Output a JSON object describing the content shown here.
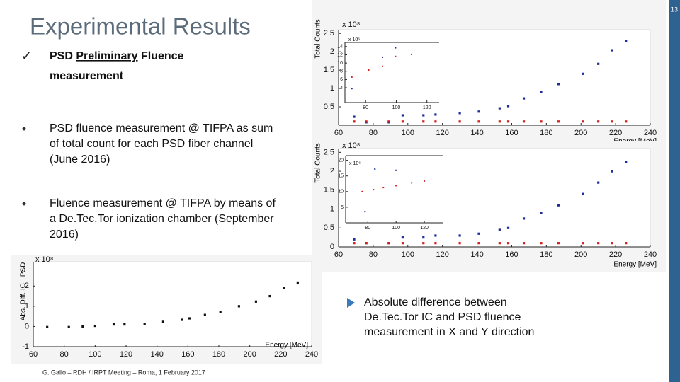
{
  "slide": {
    "title": "Experimental Results",
    "check": "✓",
    "heading": {
      "a": "PSD",
      "u": "Preliminary",
      "b": "Fluence",
      "line2": "measurement"
    },
    "bullets": [
      [
        "PSD fluence measurement @ TIFPA as sum",
        "of total count for each PSD fiber channel",
        "(June 2016)"
      ],
      [
        "Fluence measurement @ TIFPA by means of",
        "a De.Tec.Tor ionization chamber (September",
        "2016)"
      ]
    ],
    "note": [
      "Absolute difference between",
      "De.Tec.Tor IC and PSD fluence",
      "measurement in X and Y direction"
    ],
    "footer": "G. Gallo – RDH / IRPT Meeting – Roma, 1 February 2017",
    "page": "13"
  },
  "chart_data": [
    {
      "type": "scatter",
      "ylabel": "Total Counts",
      "xlabel": "Energy [MeV]",
      "exponent": "x 10⁸",
      "xlim": [
        60,
        240
      ],
      "xticks": [
        60,
        80,
        100,
        120,
        140,
        160,
        180,
        200,
        220,
        240
      ],
      "ylim": [
        0,
        2.6
      ],
      "yticks": [
        0.5,
        1,
        1.5,
        2,
        2.5
      ],
      "series": [
        {
          "color": "#1f2f9a",
          "x": [
            69,
            76,
            89,
            97,
            109,
            116,
            130,
            141,
            153,
            158,
            167,
            177,
            187,
            201,
            210,
            218,
            226
          ],
          "values": [
            0.23,
            0.08,
            0.08,
            0.27,
            0.27,
            0.29,
            0.33,
            0.37,
            0.46,
            0.52,
            0.73,
            0.9,
            1.12,
            1.4,
            1.67,
            2.04,
            2.29
          ]
        },
        {
          "color": "#d02020",
          "x": [
            69,
            76,
            89,
            97,
            109,
            116,
            130,
            141,
            153,
            158,
            167,
            177,
            187,
            201,
            210,
            218,
            226
          ],
          "values": [
            0.1,
            0.1,
            0.1,
            0.1,
            0.1,
            0.1,
            0.1,
            0.1,
            0.1,
            0.1,
            0.1,
            0.1,
            0.1,
            0.1,
            0.1,
            0.1,
            0.1
          ]
        }
      ]
    },
    {
      "type": "scatter",
      "ylabel": "Total Counts",
      "xlabel": "Energy [MeV]",
      "exponent": "x 10⁸",
      "xlim": [
        60,
        240
      ],
      "xticks": [
        60,
        80,
        100,
        120,
        140,
        160,
        180,
        200,
        220,
        240
      ],
      "ylim": [
        0,
        2.6
      ],
      "yticks": [
        0,
        0.5,
        1,
        1.5,
        2,
        2.5
      ],
      "series": [
        {
          "color": "#1f2f9a",
          "x": [
            69,
            76,
            89,
            97,
            109,
            116,
            130,
            141,
            153,
            158,
            167,
            177,
            187,
            201,
            210,
            218,
            226
          ],
          "values": [
            0.2,
            0.1,
            0.1,
            0.25,
            0.25,
            0.3,
            0.3,
            0.35,
            0.45,
            0.5,
            0.75,
            0.9,
            1.1,
            1.4,
            1.7,
            2.0,
            2.24
          ]
        },
        {
          "color": "#d02020",
          "x": [
            69,
            76,
            89,
            97,
            109,
            116,
            130,
            141,
            153,
            158,
            167,
            177,
            187,
            201,
            210,
            218,
            226
          ],
          "values": [
            0.1,
            0.1,
            0.1,
            0.1,
            0.1,
            0.1,
            0.1,
            0.1,
            0.1,
            0.1,
            0.1,
            0.1,
            0.1,
            0.1,
            0.1,
            0.1,
            0.1
          ]
        }
      ]
    },
    {
      "type": "scatter",
      "ylabel": "Abs. Diff. IC - PSD",
      "xlabel": "Energy [MeV]",
      "exponent": "x 10⁸",
      "xlim": [
        60,
        240
      ],
      "xticks": [
        60,
        80,
        100,
        120,
        140,
        160,
        180,
        200,
        220,
        240
      ],
      "ylim": [
        -1,
        3.2
      ],
      "yticks": [
        -1,
        0,
        1,
        2
      ],
      "series": [
        {
          "color": "#111111",
          "x": [
            69,
            83,
            92,
            100,
            112,
            119,
            132,
            144,
            156,
            161,
            171,
            181,
            193,
            204,
            213,
            222,
            231
          ],
          "values": [
            -0.03,
            -0.03,
            0,
            0.03,
            0.1,
            0.1,
            0.13,
            0.23,
            0.33,
            0.4,
            0.57,
            0.73,
            1.0,
            1.23,
            1.5,
            1.9,
            2.17
          ]
        }
      ]
    },
    {
      "type": "scatter",
      "exponent": "x 10⁶",
      "xlim": [
        66.5,
        128
      ],
      "xticks": [
        80,
        100,
        120
      ],
      "ylim": [
        0.4,
        15
      ],
      "yticks": [
        4,
        6,
        8,
        10,
        12,
        14
      ],
      "series": [
        {
          "color": "#d02020",
          "x": [
            71,
            82,
            91,
            99.5,
            110
          ],
          "values": [
            6.6,
            8.3,
            9.2,
            11.6,
            12.1
          ]
        },
        {
          "color": "#1f2f9a",
          "x": [
            71,
            91,
            99.5
          ],
          "values": [
            3.8,
            11.4,
            13.7
          ]
        }
      ]
    },
    {
      "type": "scatter",
      "exponent": "x 10⁶",
      "xlim": [
        64.3,
        133
      ],
      "xticks": [
        80,
        100,
        120
      ],
      "ylim": [
        0,
        21.5
      ],
      "yticks": [
        5,
        10,
        15,
        20
      ],
      "series": [
        {
          "color": "#d02020",
          "x": [
            76,
            84,
            91,
            100,
            111,
            120
          ],
          "values": [
            10,
            10.6,
            11.3,
            11.9,
            12.8,
            13.4
          ]
        },
        {
          "color": "#1f2f9a",
          "x": [
            78,
            85,
            100
          ],
          "values": [
            3.6,
            17.2,
            16.8
          ]
        }
      ]
    }
  ]
}
